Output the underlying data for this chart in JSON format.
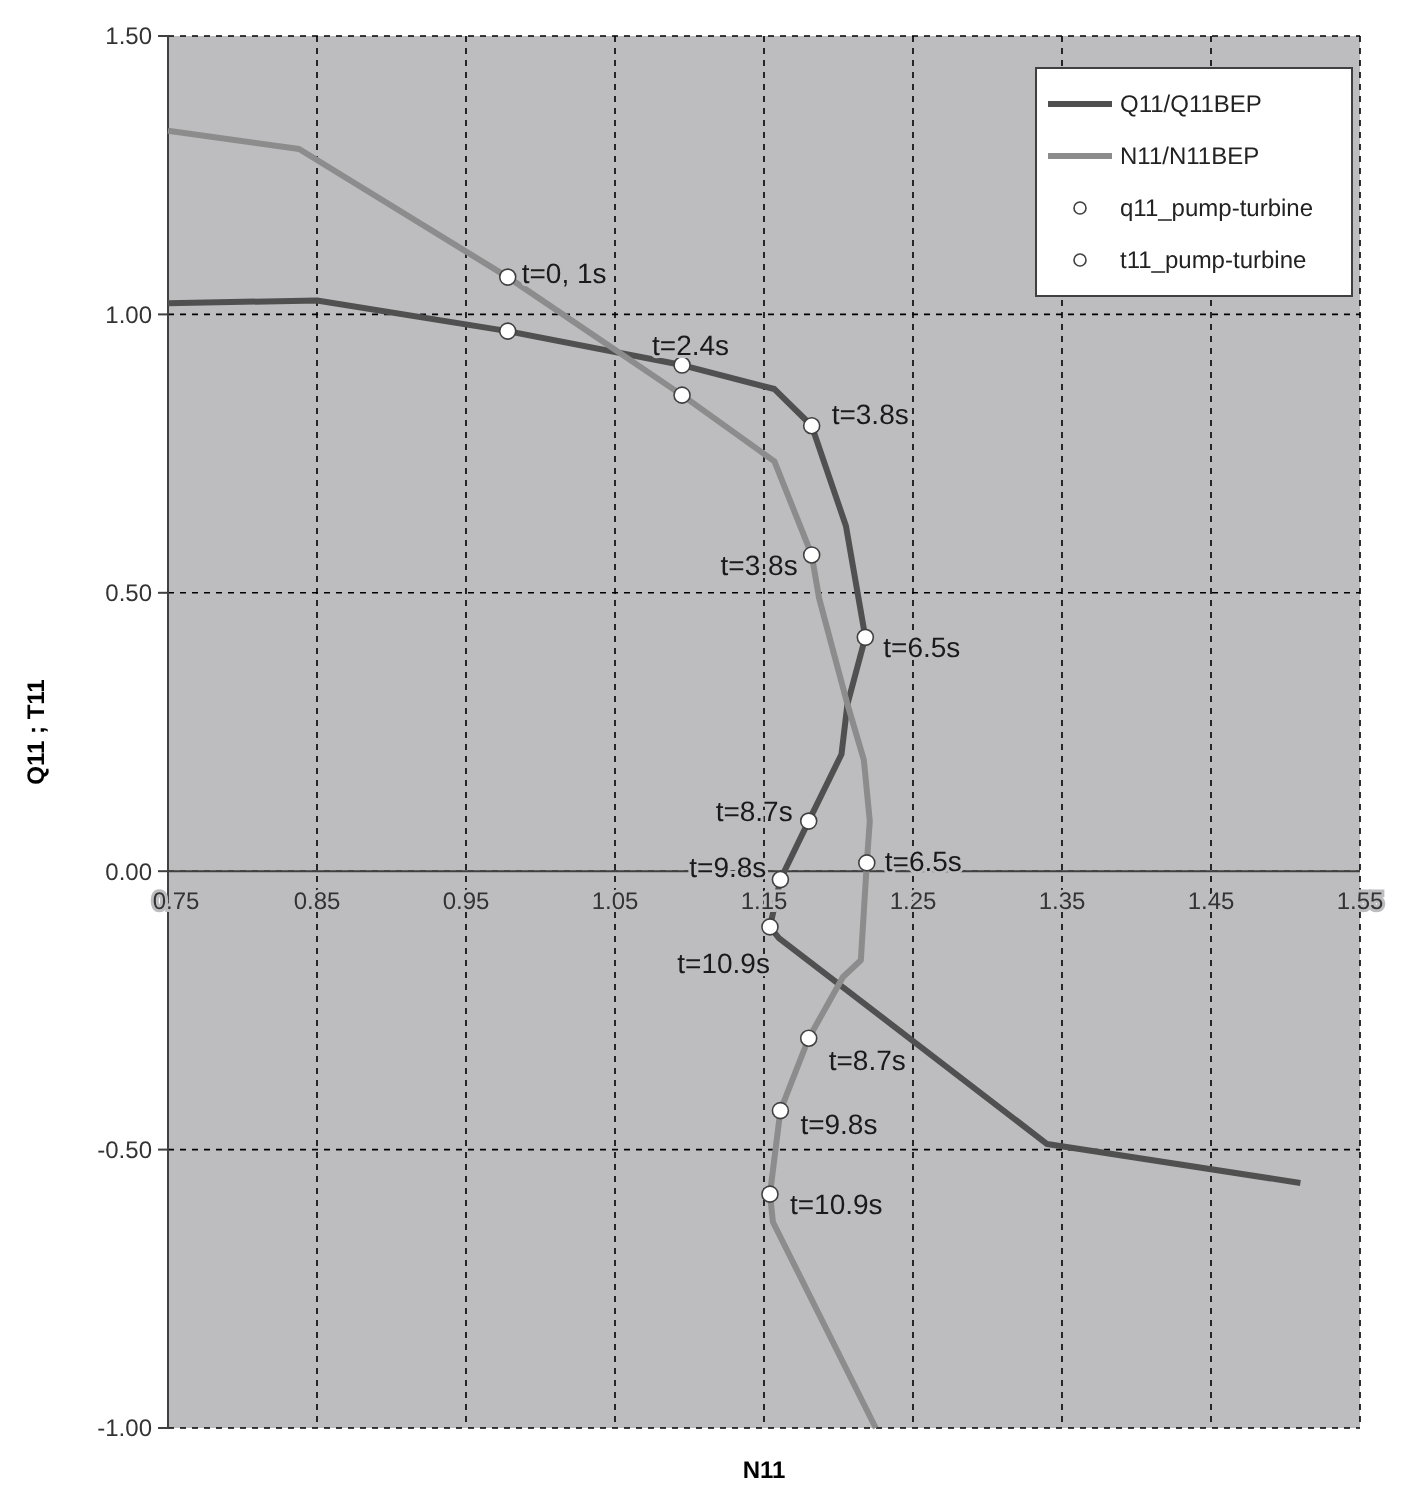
{
  "chart_data": {
    "type": "line",
    "xlabel": "N11",
    "ylabel": "Q11 ; T11",
    "xlim": [
      0.75,
      1.55
    ],
    "xticks": [
      0.75,
      0.85,
      0.95,
      1.05,
      1.15,
      1.25,
      1.35,
      1.45,
      1.55
    ],
    "ylim": [
      -1,
      1.5
    ],
    "yticks": [
      {
        "value": -1,
        "label": "-1.00"
      },
      {
        "value": -0.5,
        "label": "-0.50"
      },
      {
        "value": 0,
        "label": "0.00"
      },
      {
        "value": 0.5,
        "label": "0.50"
      },
      {
        "value": 1,
        "label": "1.00"
      },
      {
        "value": 1.5,
        "label": "1.50"
      }
    ],
    "grid": true,
    "legend": "top right",
    "line_style": "solid",
    "series": [
      {
        "name": "Q11/Q11BEP",
        "color": "#505050",
        "x": [
          0.75,
          0.85,
          0.978,
          1.095,
          1.157,
          1.182,
          1.205,
          1.218,
          1.206,
          1.202,
          1.18,
          1.161,
          1.154,
          1.16,
          1.34,
          1.51
        ],
        "values": [
          1.02,
          1.025,
          0.97,
          0.909,
          0.866,
          0.8,
          0.62,
          0.42,
          0.3,
          0.21,
          0.09,
          -0.015,
          -0.1,
          -0.12,
          -0.49,
          -0.56
        ]
      },
      {
        "name": "N11/N11BEP",
        "color": "#8c8c8c",
        "x": [
          0.75,
          0.838,
          0.978,
          1.095,
          1.157,
          1.182,
          1.187,
          1.206,
          1.217,
          1.221,
          1.219,
          1.215,
          1.203,
          1.18,
          1.161,
          1.154,
          1.156,
          1.225
        ],
        "values": [
          1.33,
          1.297,
          1.067,
          0.855,
          0.736,
          0.568,
          0.49,
          0.3,
          0.2,
          0.09,
          0.015,
          -0.16,
          -0.19,
          -0.3,
          -0.43,
          -0.58,
          -0.63,
          -1.0
        ]
      },
      {
        "name": "q11_pump-turbine",
        "type": "scatter",
        "color": "#ffffff",
        "marker": "circle",
        "x": [
          0.978,
          1.095,
          1.182,
          1.218,
          1.18,
          1.161,
          1.154
        ],
        "values": [
          0.97,
          0.909,
          0.8,
          0.42,
          0.09,
          -0.015,
          -0.1
        ]
      },
      {
        "name": "t11_pump-turbine",
        "type": "scatter",
        "color": "#ffffff",
        "marker": "circle",
        "x": [
          0.978,
          1.095,
          1.182,
          1.219,
          1.18,
          1.161,
          1.154
        ],
        "values": [
          1.067,
          0.855,
          0.568,
          0.015,
          -0.3,
          -0.43,
          -0.58
        ]
      }
    ],
    "annotations": [
      {
        "text": "t=0, 1s",
        "x": 0.978,
        "y": 1.067
      },
      {
        "text": "t=2.4s",
        "x": 1.095,
        "y": 0.909
      },
      {
        "text": "t=3.8s",
        "x": 1.182,
        "y": 0.8
      },
      {
        "text": "t=3.8s",
        "x": 1.182,
        "y": 0.568
      },
      {
        "text": "t=6.5s",
        "x": 1.218,
        "y": 0.42
      },
      {
        "text": "t=6.5s",
        "x": 1.219,
        "y": 0.015
      },
      {
        "text": "t=8.7s",
        "x": 1.18,
        "y": 0.09
      },
      {
        "text": "t=9.8s",
        "x": 1.161,
        "y": -0.015
      },
      {
        "text": "t=10.9s",
        "x": 1.154,
        "y": -0.1
      },
      {
        "text": "t=8.7s",
        "x": 1.18,
        "y": -0.3
      },
      {
        "text": "t=9.8s",
        "x": 1.161,
        "y": -0.43
      },
      {
        "text": "t=10.9s",
        "x": 1.154,
        "y": -0.58
      }
    ]
  }
}
